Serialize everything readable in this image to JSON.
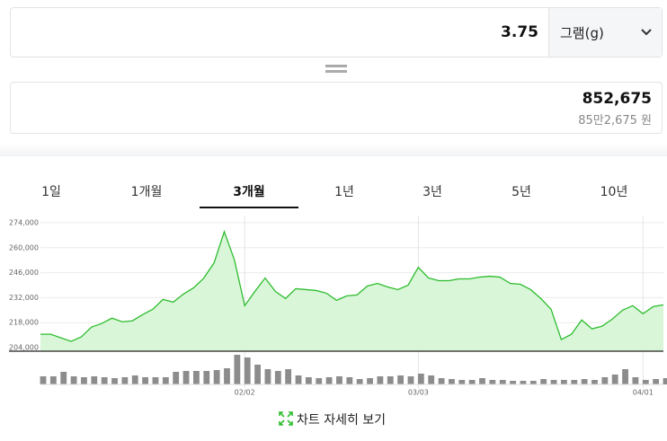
{
  "converter": {
    "amount": "3.75",
    "unit": "그램(g)",
    "result": "852,675",
    "result_korean": "85만2,675 원"
  },
  "tabs": [
    "1일",
    "1개월",
    "3개월",
    "1년",
    "3년",
    "5년",
    "10년"
  ],
  "link": "차트 자세히 보기",
  "chart_data": [
    {
      "type": "line",
      "color": "#2dbd2d",
      "fill": "#d9f6d9",
      "categories": [
        null,
        null,
        null,
        null,
        null,
        null,
        null,
        null,
        null,
        null,
        null,
        null,
        null,
        null,
        null,
        null,
        null,
        null,
        null,
        null,
        "02/02",
        null,
        null,
        null,
        null,
        null,
        null,
        null,
        null,
        null,
        null,
        null,
        null,
        null,
        null,
        null,
        null,
        "03/03",
        null,
        null,
        null,
        null,
        null,
        null,
        null,
        null,
        null,
        null,
        null,
        null,
        null,
        null,
        null,
        null,
        null,
        null,
        null,
        null,
        null,
        "04/01",
        null,
        null
      ],
      "values": [
        211500,
        211500,
        209500,
        207500,
        210000,
        215500,
        217500,
        220500,
        218500,
        219000,
        222500,
        225500,
        231000,
        229500,
        234000,
        237500,
        243000,
        251500,
        269000,
        253000,
        227500,
        235500,
        243000,
        235500,
        231500,
        237000,
        236500,
        236000,
        234500,
        230500,
        233000,
        233500,
        238500,
        240000,
        238000,
        236500,
        239000,
        249000,
        243000,
        241500,
        241500,
        242500,
        242500,
        243500,
        244000,
        243500,
        240000,
        239500,
        236500,
        231500,
        225500,
        208500,
        211500,
        219500,
        214500,
        216000,
        220000,
        225000,
        227500,
        223000,
        227000,
        228000
      ],
      "ylim": [
        202000,
        278000
      ],
      "yticks": [
        {
          "value": 204000,
          "label": "204,000"
        },
        {
          "value": 218000,
          "label": "218,000"
        },
        {
          "value": 232000,
          "label": "232,000"
        },
        {
          "value": 246000,
          "label": "246,000"
        },
        {
          "value": 260000,
          "label": "260,000"
        },
        {
          "value": 274000,
          "label": "274,000"
        }
      ],
      "grid": true
    },
    {
      "type": "bar",
      "color": "#8c8c8c",
      "values": [
        9,
        9,
        14,
        9,
        8,
        9,
        8,
        7,
        8,
        10,
        8,
        8,
        8,
        14,
        15,
        15,
        15,
        16,
        18,
        33,
        30,
        22,
        17,
        15,
        17,
        10,
        8,
        7,
        8,
        9,
        8,
        6,
        7,
        9,
        9,
        10,
        9,
        12,
        10,
        7,
        6,
        5,
        5,
        7,
        5,
        5,
        4,
        4,
        4,
        6,
        5,
        5,
        5,
        6,
        5,
        8,
        11,
        17,
        8,
        5,
        6,
        7
      ]
    }
  ]
}
